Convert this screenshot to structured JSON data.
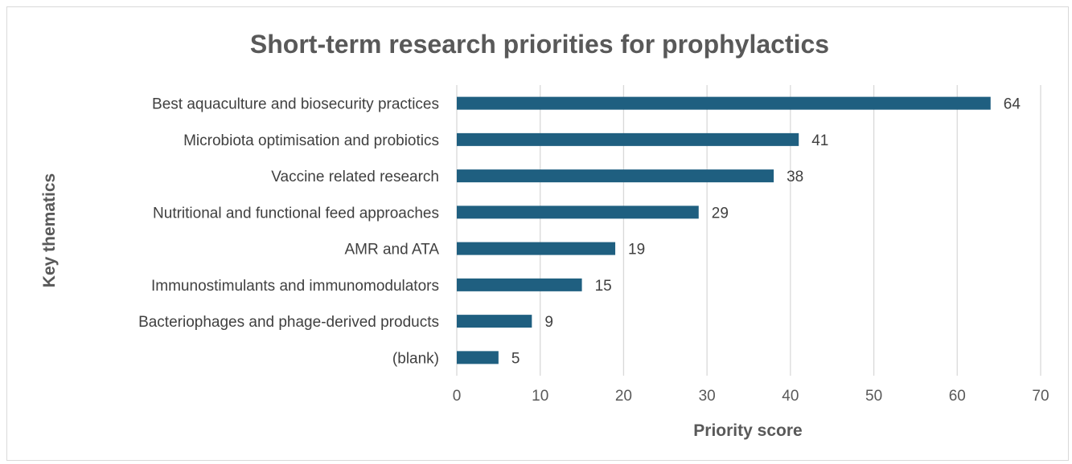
{
  "chart_data": {
    "type": "bar",
    "orientation": "horizontal",
    "title": "Short-term research priorities for prophylactics",
    "xlabel": "Priority score",
    "ylabel": "Key thematics",
    "categories": [
      "Best aquaculture and biosecurity practices",
      "Microbiota optimisation and probiotics",
      "Vaccine related research",
      "Nutritional and functional feed approaches",
      "AMR and ATA",
      "Immunostimulants and immunomodulators",
      "Bacteriophages and phage-derived products",
      "(blank)"
    ],
    "values": [
      64,
      41,
      38,
      29,
      19,
      15,
      9,
      5
    ],
    "xlim": [
      0,
      70
    ],
    "xticks": [
      0,
      10,
      20,
      30,
      40,
      50,
      60,
      70
    ],
    "grid": "vertical",
    "legend": "none",
    "bar_color": "#1f5f80"
  }
}
